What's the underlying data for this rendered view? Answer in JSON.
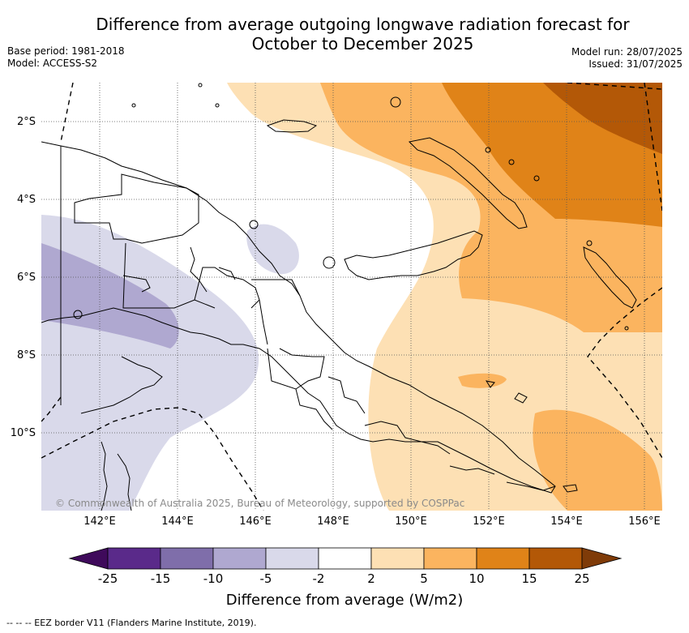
{
  "title_line1": "Difference from average outgoing longwave radiation forecast for",
  "title_line2": "October to December 2025",
  "base_period": "Base period: 1981-2018",
  "model": "Model: ACCESS-S2",
  "model_run": "Model run: 28/07/2025",
  "issued": "Issued: 31/07/2025",
  "latitudes": [
    "2°S",
    "4°S",
    "6°S",
    "8°S",
    "10°S"
  ],
  "longitudes": [
    "142°E",
    "144°E",
    "146°E",
    "148°E",
    "150°E",
    "152°E",
    "154°E",
    "156°E"
  ],
  "copyright": "© Commonwealth of Australia 2025, Bureau of Meteorology, supported by COSPPac",
  "colorbar": {
    "labels": [
      "-25",
      "-15",
      "-10",
      "-5",
      "-2",
      "2",
      "5",
      "10",
      "15",
      "25"
    ],
    "colors": [
      "#3f0a5b",
      "#5a2a8a",
      "#7f6eaa",
      "#afa8d0",
      "#d9d9ea",
      "#ffffff",
      "#fde0b4",
      "#fbb45f",
      "#e08318",
      "#b35807",
      "#7f3b08"
    ],
    "title": "Difference from average (W/m2)"
  },
  "footer": "--  --  -- EEZ border V11 (Flanders Marine Institute, 2019)."
}
